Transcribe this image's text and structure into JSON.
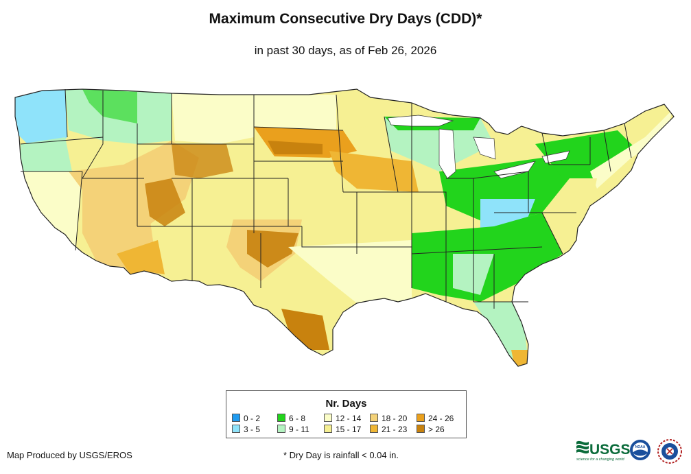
{
  "header": {
    "title": "Maximum Consecutive Dry Days (CDD)*",
    "subtitle": "in past 30 days, as of Feb 26, 2026"
  },
  "legend": {
    "title": "Nr. Days",
    "items": [
      {
        "label": "0 - 2",
        "color": "#1f9bf0"
      },
      {
        "label": "3 - 5",
        "color": "#8fe3fa"
      },
      {
        "label": "6 - 8",
        "color": "#22d41c"
      },
      {
        "label": "9 - 11",
        "color": "#b4f3c1"
      },
      {
        "label": "12 - 14",
        "color": "#fbfdc8"
      },
      {
        "label": "15 - 17",
        "color": "#f6f093"
      },
      {
        "label": "18 - 20",
        "color": "#f4d278"
      },
      {
        "label": "21 - 23",
        "color": "#efb634"
      },
      {
        "label": "24 - 26",
        "color": "#eaa01d"
      },
      {
        "label": "> 26",
        "color": "#c8820e"
      }
    ]
  },
  "footer": {
    "credit": "Map Produced by USGS/EROS",
    "footnote": "* Dry Day is rainfall < 0.04 in."
  },
  "logos": {
    "usgs": "USGS",
    "usgs_tagline": "science for a changing world",
    "noaa": "NOAA",
    "nws_icon": "national-weather-service-seal"
  }
}
